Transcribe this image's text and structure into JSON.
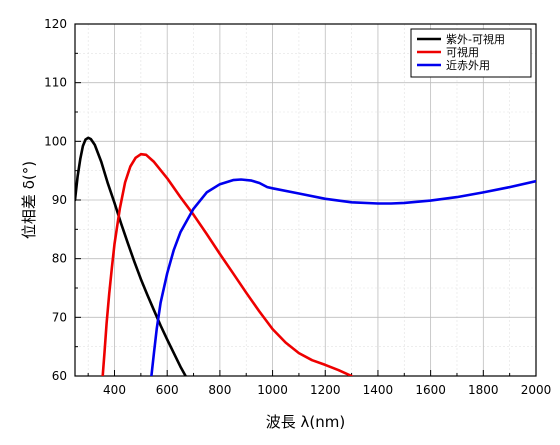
{
  "chart_data": {
    "type": "line",
    "title": "",
    "xlabel": "波長 λ(nm)",
    "ylabel": "位相差 δ(°)",
    "xlim": [
      250,
      2000
    ],
    "ylim": [
      60,
      120
    ],
    "x_ticks": [
      400,
      600,
      800,
      1000,
      1200,
      1400,
      1600,
      1800,
      2000
    ],
    "y_ticks": [
      60,
      70,
      80,
      90,
      100,
      110,
      120
    ],
    "grid": true,
    "legend_position": "top-right",
    "series": [
      {
        "name": "紫外-可視用",
        "color": "#000000",
        "points": [
          [
            250,
            90
          ],
          [
            260,
            94
          ],
          [
            270,
            97
          ],
          [
            280,
            99.2
          ],
          [
            290,
            100.3
          ],
          [
            300,
            100.6
          ],
          [
            310,
            100.4
          ],
          [
            325,
            99.4
          ],
          [
            350,
            96.5
          ],
          [
            375,
            92.8
          ],
          [
            400,
            89.5
          ],
          [
            425,
            86
          ],
          [
            450,
            82.7
          ],
          [
            475,
            79.5
          ],
          [
            500,
            76.5
          ],
          [
            525,
            73.8
          ],
          [
            550,
            71.2
          ],
          [
            575,
            68.6
          ],
          [
            600,
            66.2
          ],
          [
            625,
            63.9
          ],
          [
            650,
            61.6
          ],
          [
            670,
            60
          ]
        ]
      },
      {
        "name": "可視用",
        "color": "#ee0000",
        "points": [
          [
            355,
            60
          ],
          [
            362,
            64
          ],
          [
            370,
            69
          ],
          [
            380,
            74
          ],
          [
            390,
            78.5
          ],
          [
            400,
            82.5
          ],
          [
            420,
            88.5
          ],
          [
            440,
            93
          ],
          [
            460,
            95.7
          ],
          [
            480,
            97.2
          ],
          [
            500,
            97.8
          ],
          [
            520,
            97.7
          ],
          [
            550,
            96.5
          ],
          [
            600,
            93.7
          ],
          [
            650,
            90.5
          ],
          [
            700,
            87.5
          ],
          [
            750,
            84.2
          ],
          [
            800,
            80.8
          ],
          [
            850,
            77.5
          ],
          [
            900,
            74.2
          ],
          [
            950,
            71
          ],
          [
            1000,
            68
          ],
          [
            1050,
            65.7
          ],
          [
            1100,
            63.9
          ],
          [
            1150,
            62.7
          ],
          [
            1200,
            61.9
          ],
          [
            1250,
            61
          ],
          [
            1300,
            60
          ]
        ]
      },
      {
        "name": "近赤外用",
        "color": "#0000ee",
        "points": [
          [
            540,
            60
          ],
          [
            550,
            64
          ],
          [
            560,
            68
          ],
          [
            575,
            72.5
          ],
          [
            600,
            77.5
          ],
          [
            625,
            81.5
          ],
          [
            650,
            84.5
          ],
          [
            700,
            88.5
          ],
          [
            750,
            91.3
          ],
          [
            800,
            92.7
          ],
          [
            850,
            93.4
          ],
          [
            880,
            93.5
          ],
          [
            920,
            93.3
          ],
          [
            950,
            92.9
          ],
          [
            980,
            92.2
          ],
          [
            1000,
            92
          ],
          [
            1100,
            91.1
          ],
          [
            1200,
            90.2
          ],
          [
            1300,
            89.6
          ],
          [
            1400,
            89.4
          ],
          [
            1450,
            89.4
          ],
          [
            1500,
            89.5
          ],
          [
            1600,
            89.9
          ],
          [
            1700,
            90.5
          ],
          [
            1800,
            91.3
          ],
          [
            1900,
            92.2
          ],
          [
            2000,
            93.2
          ]
        ]
      }
    ]
  }
}
